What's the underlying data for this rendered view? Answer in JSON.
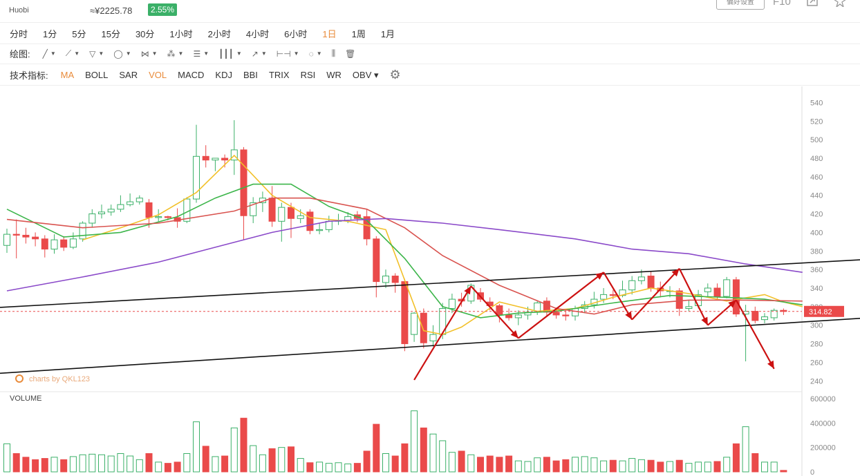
{
  "header": {
    "exchange": "Huobi",
    "price_cny": "≈¥2225.78",
    "change_pct": "2.55%",
    "pref_button": "偏好设置",
    "f10": "F10"
  },
  "periods": [
    "分时",
    "1分",
    "5分",
    "15分",
    "30分",
    "1小时",
    "2小时",
    "4小时",
    "6小时",
    "1日",
    "1周",
    "1月"
  ],
  "active_period": "1日",
  "drawing": {
    "label": "绘图:",
    "tools": [
      "line-tool-icon",
      "segment-tool-icon",
      "channel-tool-icon",
      "circle-tool-icon",
      "wave-tool-icon",
      "pattern-tool-icon",
      "fib-tool-icon",
      "grid-tool-icon",
      "arrow-tool-icon",
      "measure-tool-icon",
      "text-tool-icon",
      "candle-tool-icon",
      "trash-icon"
    ]
  },
  "indicators": {
    "label": "技术指标:",
    "items": [
      "MA",
      "BOLL",
      "SAR",
      "VOL",
      "MACD",
      "KDJ",
      "BBI",
      "TRIX",
      "RSI",
      "WR",
      "OBV"
    ],
    "active": [
      "MA",
      "VOL"
    ]
  },
  "colors": {
    "up": "#3bb068",
    "down": "#ea4a4a",
    "ma5": "#f2c029",
    "ma10": "#3cb54a",
    "ma20": "#d9534f",
    "ma60": "#8a49c9",
    "accent": "#e98b3a",
    "annot": "#cc1111"
  },
  "chart_data": {
    "type": "candlestick",
    "price_axis": {
      "ticks": [
        240,
        260,
        280,
        300,
        320,
        340,
        360,
        380,
        400,
        420,
        440,
        460,
        480,
        500,
        520,
        540
      ],
      "range": [
        232,
        550
      ]
    },
    "volume_axis": {
      "ticks": [
        0,
        200000,
        400000,
        600000
      ],
      "tick_labels": [
        "0",
        "200000",
        "400000",
        "600000"
      ],
      "range": [
        0,
        600000
      ]
    },
    "current_price": 314.82,
    "current_price_label": "314.82",
    "watermark": "charts by QKL123",
    "volume_title": "VOLUME",
    "candles": [
      {
        "o": 386,
        "c": 398,
        "h": 404,
        "l": 378,
        "v": 230000
      },
      {
        "o": 398,
        "c": 397,
        "h": 414,
        "l": 372,
        "v": 150000
      },
      {
        "o": 397,
        "c": 395,
        "h": 405,
        "l": 388,
        "v": 120000
      },
      {
        "o": 395,
        "c": 393,
        "h": 400,
        "l": 385,
        "v": 100000
      },
      {
        "o": 393,
        "c": 382,
        "h": 397,
        "l": 373,
        "v": 110000
      },
      {
        "o": 382,
        "c": 392,
        "h": 398,
        "l": 377,
        "v": 120000
      },
      {
        "o": 392,
        "c": 384,
        "h": 396,
        "l": 380,
        "v": 100000
      },
      {
        "o": 384,
        "c": 393,
        "h": 400,
        "l": 382,
        "v": 125000
      },
      {
        "o": 393,
        "c": 410,
        "h": 412,
        "l": 390,
        "v": 140000
      },
      {
        "o": 410,
        "c": 420,
        "h": 425,
        "l": 405,
        "v": 145000
      },
      {
        "o": 420,
        "c": 422,
        "h": 430,
        "l": 415,
        "v": 140000
      },
      {
        "o": 422,
        "c": 425,
        "h": 430,
        "l": 418,
        "v": 130000
      },
      {
        "o": 425,
        "c": 430,
        "h": 440,
        "l": 422,
        "v": 150000
      },
      {
        "o": 430,
        "c": 433,
        "h": 442,
        "l": 428,
        "v": 130000
      },
      {
        "o": 433,
        "c": 437,
        "h": 440,
        "l": 430,
        "v": 100000
      },
      {
        "o": 432,
        "c": 416,
        "h": 436,
        "l": 405,
        "v": 150000
      },
      {
        "o": 416,
        "c": 417,
        "h": 425,
        "l": 412,
        "v": 80000
      },
      {
        "o": 417,
        "c": 416,
        "h": 418,
        "l": 413,
        "v": 70000
      },
      {
        "o": 416,
        "c": 412,
        "h": 426,
        "l": 405,
        "v": 80000
      },
      {
        "o": 412,
        "c": 436,
        "h": 438,
        "l": 410,
        "v": 150000
      },
      {
        "o": 436,
        "c": 482,
        "h": 516,
        "l": 432,
        "v": 410000
      },
      {
        "o": 482,
        "c": 478,
        "h": 494,
        "l": 470,
        "v": 210000
      },
      {
        "o": 478,
        "c": 480,
        "h": 480,
        "l": 466,
        "v": 125000
      },
      {
        "o": 480,
        "c": 478,
        "h": 484,
        "l": 470,
        "v": 130000
      },
      {
        "o": 478,
        "c": 489,
        "h": 521,
        "l": 462,
        "v": 360000
      },
      {
        "o": 489,
        "c": 418,
        "h": 492,
        "l": 392,
        "v": 440000
      },
      {
        "o": 418,
        "c": 432,
        "h": 438,
        "l": 410,
        "v": 215000
      },
      {
        "o": 432,
        "c": 437,
        "h": 444,
        "l": 422,
        "v": 140000
      },
      {
        "o": 437,
        "c": 412,
        "h": 450,
        "l": 406,
        "v": 190000
      },
      {
        "o": 412,
        "c": 427,
        "h": 432,
        "l": 390,
        "v": 200000
      },
      {
        "o": 427,
        "c": 415,
        "h": 432,
        "l": 394,
        "v": 205000
      },
      {
        "o": 415,
        "c": 418,
        "h": 425,
        "l": 410,
        "v": 110000
      },
      {
        "o": 422,
        "c": 402,
        "h": 425,
        "l": 398,
        "v": 75000
      },
      {
        "o": 402,
        "c": 403,
        "h": 410,
        "l": 398,
        "v": 80000
      },
      {
        "o": 403,
        "c": 412,
        "h": 418,
        "l": 400,
        "v": 70000
      },
      {
        "o": 412,
        "c": 413,
        "h": 420,
        "l": 408,
        "v": 75000
      },
      {
        "o": 413,
        "c": 417,
        "h": 422,
        "l": 410,
        "v": 65000
      },
      {
        "o": 419,
        "c": 415,
        "h": 423,
        "l": 411,
        "v": 70000
      },
      {
        "o": 417,
        "c": 393,
        "h": 425,
        "l": 386,
        "v": 170000
      },
      {
        "o": 393,
        "c": 347,
        "h": 396,
        "l": 330,
        "v": 390000
      },
      {
        "o": 346,
        "c": 353,
        "h": 360,
        "l": 340,
        "v": 150000
      },
      {
        "o": 353,
        "c": 346,
        "h": 356,
        "l": 335,
        "v": 130000
      },
      {
        "o": 347,
        "c": 280,
        "h": 350,
        "l": 272,
        "v": 230000
      },
      {
        "o": 290,
        "c": 313,
        "h": 314,
        "l": 282,
        "v": 500000
      },
      {
        "o": 313,
        "c": 281,
        "h": 318,
        "l": 275,
        "v": 360000
      },
      {
        "o": 283,
        "c": 290,
        "h": 300,
        "l": 277,
        "v": 310000
      },
      {
        "o": 290,
        "c": 318,
        "h": 324,
        "l": 285,
        "v": 255000
      },
      {
        "o": 318,
        "c": 328,
        "h": 334,
        "l": 313,
        "v": 160000
      },
      {
        "o": 328,
        "c": 326,
        "h": 335,
        "l": 320,
        "v": 170000
      },
      {
        "o": 326,
        "c": 343,
        "h": 345,
        "l": 323,
        "v": 140000
      },
      {
        "o": 335,
        "c": 328,
        "h": 340,
        "l": 325,
        "v": 120000
      },
      {
        "o": 325,
        "c": 321,
        "h": 330,
        "l": 316,
        "v": 130000
      },
      {
        "o": 321,
        "c": 311,
        "h": 323,
        "l": 303,
        "v": 120000
      },
      {
        "o": 311,
        "c": 308,
        "h": 318,
        "l": 305,
        "v": 130000
      },
      {
        "o": 308,
        "c": 311,
        "h": 316,
        "l": 300,
        "v": 90000
      },
      {
        "o": 311,
        "c": 314,
        "h": 320,
        "l": 306,
        "v": 85000
      },
      {
        "o": 314,
        "c": 324,
        "h": 326,
        "l": 311,
        "v": 115000
      },
      {
        "o": 326,
        "c": 314,
        "h": 330,
        "l": 310,
        "v": 120000
      },
      {
        "o": 314,
        "c": 311,
        "h": 319,
        "l": 307,
        "v": 90000
      },
      {
        "o": 311,
        "c": 310,
        "h": 316,
        "l": 305,
        "v": 100000
      },
      {
        "o": 310,
        "c": 318,
        "h": 321,
        "l": 305,
        "v": 120000
      },
      {
        "o": 318,
        "c": 322,
        "h": 326,
        "l": 313,
        "v": 125000
      },
      {
        "o": 322,
        "c": 328,
        "h": 336,
        "l": 318,
        "v": 115000
      },
      {
        "o": 328,
        "c": 333,
        "h": 340,
        "l": 324,
        "v": 90000
      },
      {
        "o": 333,
        "c": 332,
        "h": 338,
        "l": 328,
        "v": 95000
      },
      {
        "o": 332,
        "c": 338,
        "h": 348,
        "l": 330,
        "v": 90000
      },
      {
        "o": 338,
        "c": 348,
        "h": 353,
        "l": 333,
        "v": 110000
      },
      {
        "o": 348,
        "c": 352,
        "h": 360,
        "l": 344,
        "v": 100000
      },
      {
        "o": 353,
        "c": 340,
        "h": 358,
        "l": 336,
        "v": 95000
      },
      {
        "o": 340,
        "c": 337,
        "h": 347,
        "l": 330,
        "v": 80000
      },
      {
        "o": 337,
        "c": 337,
        "h": 342,
        "l": 330,
        "v": 85000
      },
      {
        "o": 337,
        "c": 318,
        "h": 340,
        "l": 310,
        "v": 95000
      },
      {
        "o": 318,
        "c": 320,
        "h": 327,
        "l": 315,
        "v": 70000
      },
      {
        "o": 321,
        "c": 333,
        "h": 338,
        "l": 318,
        "v": 80000
      },
      {
        "o": 336,
        "c": 340,
        "h": 345,
        "l": 330,
        "v": 80000
      },
      {
        "o": 340,
        "c": 331,
        "h": 345,
        "l": 328,
        "v": 85000
      },
      {
        "o": 331,
        "c": 349,
        "h": 352,
        "l": 329,
        "v": 120000
      },
      {
        "o": 349,
        "c": 312,
        "h": 352,
        "l": 309,
        "v": 230000
      },
      {
        "o": 312,
        "c": 315,
        "h": 322,
        "l": 261,
        "v": 370000
      },
      {
        "o": 315,
        "c": 305,
        "h": 320,
        "l": 302,
        "v": 150000
      },
      {
        "o": 306,
        "c": 309,
        "h": 313,
        "l": 302,
        "v": 80000
      },
      {
        "o": 308,
        "c": 316,
        "h": 318,
        "l": 305,
        "v": 80000
      },
      {
        "o": 316,
        "c": 314.82,
        "h": 318,
        "l": 311,
        "v": 12000
      }
    ],
    "ma_lines": [
      {
        "name": "MA5",
        "color": "#f2c029",
        "points": [
          [
            8,
            392
          ],
          [
            12,
            405
          ],
          [
            16,
            419
          ],
          [
            20,
            443
          ],
          [
            24,
            483
          ],
          [
            28,
            440
          ],
          [
            32,
            416
          ],
          [
            36,
            412
          ],
          [
            40,
            403
          ],
          [
            44,
            294
          ],
          [
            46,
            290
          ],
          [
            48,
            298
          ],
          [
            52,
            325
          ],
          [
            56,
            315
          ],
          [
            60,
            318
          ],
          [
            64,
            330
          ],
          [
            68,
            340
          ],
          [
            72,
            334
          ],
          [
            76,
            326
          ],
          [
            80,
            333
          ],
          [
            82,
            325
          ],
          [
            84,
            320
          ]
        ]
      },
      {
        "name": "MA10",
        "color": "#3cb54a",
        "points": [
          [
            0,
            425
          ],
          [
            6,
            395
          ],
          [
            12,
            400
          ],
          [
            18,
            417
          ],
          [
            22,
            437
          ],
          [
            26,
            452
          ],
          [
            30,
            452
          ],
          [
            34,
            428
          ],
          [
            38,
            413
          ],
          [
            42,
            372
          ],
          [
            46,
            320
          ],
          [
            50,
            308
          ],
          [
            54,
            313
          ],
          [
            58,
            315
          ],
          [
            64,
            324
          ],
          [
            70,
            332
          ],
          [
            76,
            330
          ],
          [
            80,
            328
          ],
          [
            84,
            322
          ]
        ]
      },
      {
        "name": "MA20",
        "color": "#d9534f",
        "points": [
          [
            0,
            414
          ],
          [
            8,
            405
          ],
          [
            16,
            410
          ],
          [
            24,
            423
          ],
          [
            28,
            437
          ],
          [
            32,
            437
          ],
          [
            38,
            425
          ],
          [
            42,
            405
          ],
          [
            46,
            375
          ],
          [
            52,
            343
          ],
          [
            58,
            318
          ],
          [
            62,
            312
          ],
          [
            66,
            322
          ],
          [
            72,
            327
          ],
          [
            78,
            327
          ],
          [
            84,
            326
          ]
        ]
      },
      {
        "name": "MA60",
        "color": "#8a49c9",
        "points": [
          [
            0,
            337
          ],
          [
            8,
            352
          ],
          [
            16,
            368
          ],
          [
            22,
            384
          ],
          [
            28,
            400
          ],
          [
            34,
            412
          ],
          [
            40,
            415
          ],
          [
            46,
            410
          ],
          [
            52,
            403
          ],
          [
            60,
            393
          ],
          [
            66,
            382
          ],
          [
            72,
            377
          ],
          [
            78,
            366
          ],
          [
            84,
            357
          ]
        ]
      }
    ],
    "trendlines": [
      {
        "from": [
          -1,
          319
        ],
        "to": [
          91,
          371
        ]
      },
      {
        "from": [
          -1,
          248
        ],
        "to": [
          91,
          308
        ]
      }
    ],
    "zigzag": [
      [
        43,
        241
      ],
      [
        49,
        342
      ],
      [
        54,
        286
      ],
      [
        63,
        357
      ],
      [
        66,
        306
      ],
      [
        71,
        361
      ],
      [
        74,
        300
      ],
      [
        77,
        327
      ],
      [
        81,
        253
      ]
    ]
  }
}
